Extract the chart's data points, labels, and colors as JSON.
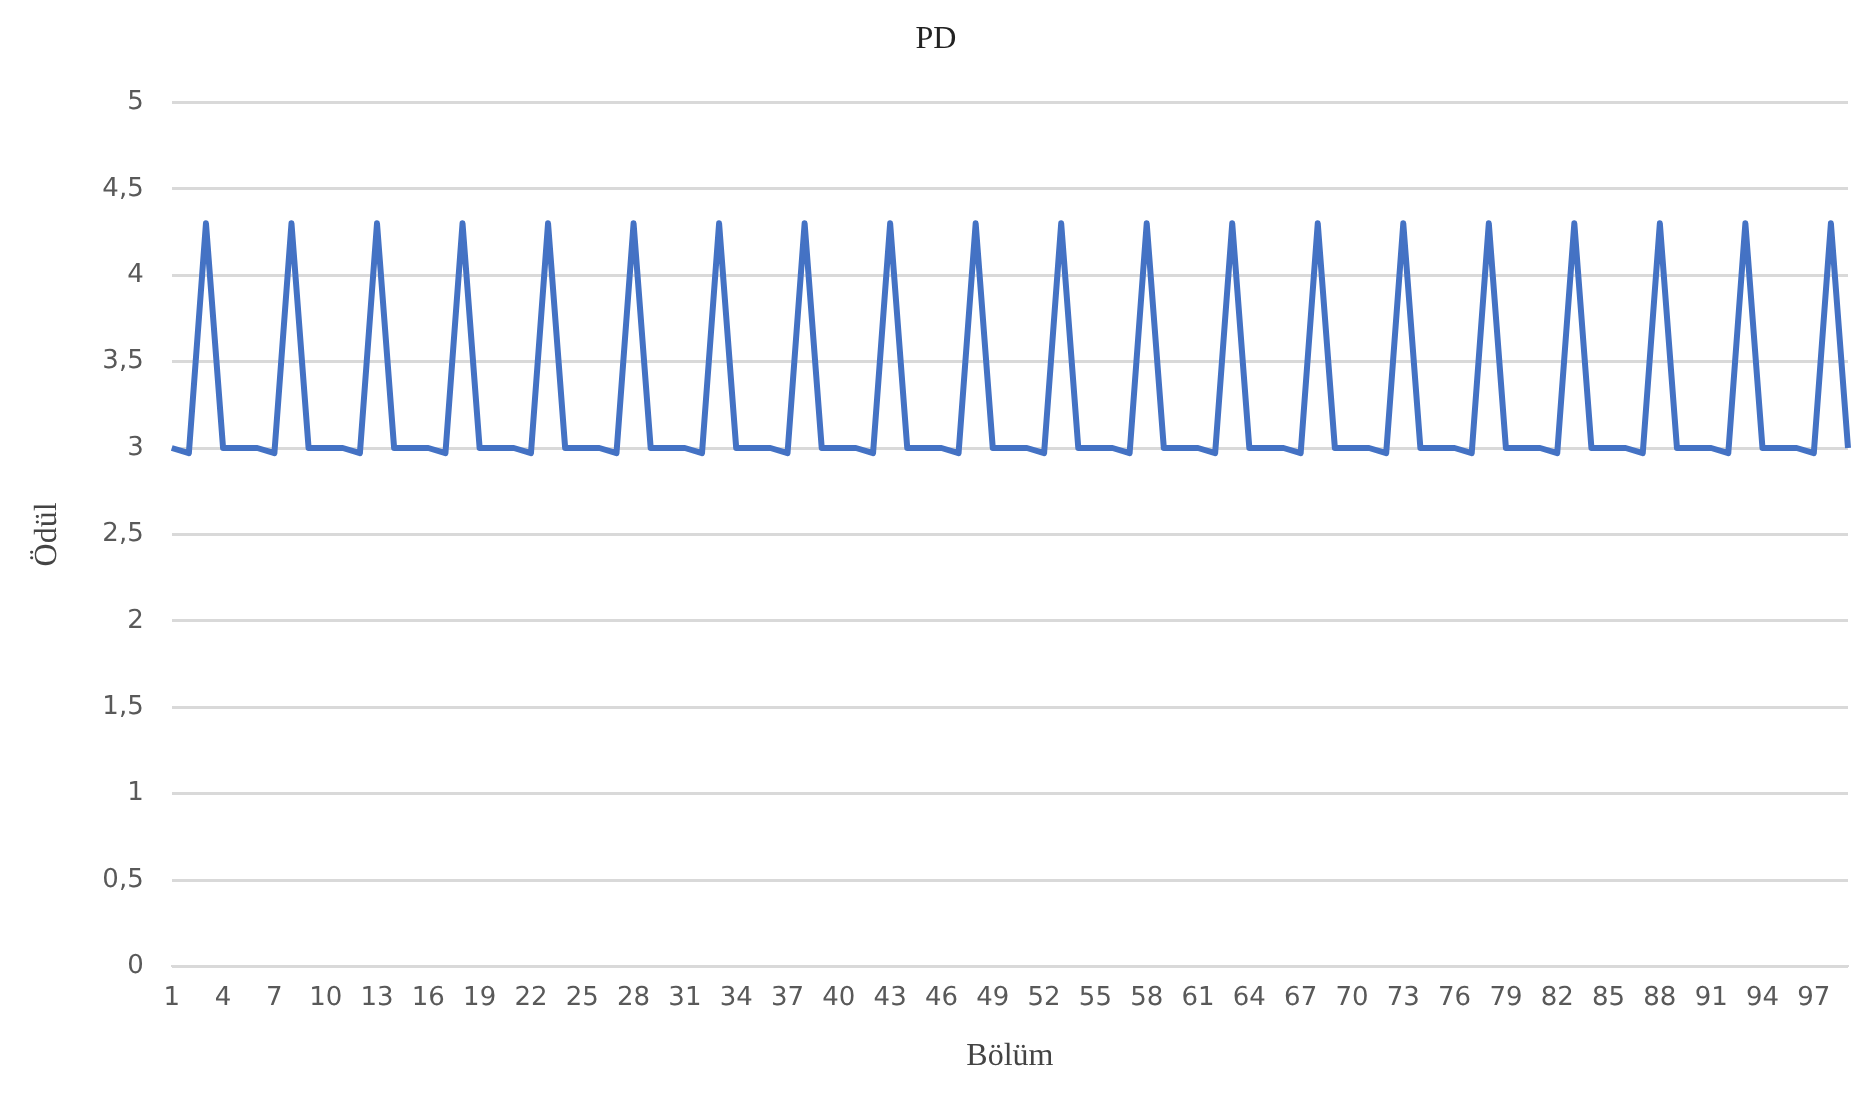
{
  "chart_data": {
    "type": "line",
    "title": "PD",
    "xlabel": "Bölüm",
    "ylabel": "Ödül",
    "categories": [
      "1",
      null,
      null,
      "4",
      null,
      null,
      "7",
      null,
      null,
      "10",
      null,
      null,
      "13",
      null,
      null,
      "16",
      null,
      null,
      "19",
      null,
      null,
      "22",
      null,
      null,
      "25",
      null,
      null,
      "28",
      null,
      null,
      "31",
      null,
      null,
      "34",
      null,
      null,
      "37",
      null,
      null,
      "40",
      null,
      null,
      "43",
      null,
      null,
      "46",
      null,
      null,
      "49",
      null,
      null,
      "52",
      null,
      null,
      "55",
      null,
      null,
      "58",
      null,
      null,
      "61",
      null,
      null,
      "64",
      null,
      null,
      "67",
      null,
      null,
      "70",
      null,
      null,
      "73",
      null,
      null,
      "76",
      null,
      null,
      "79",
      null,
      null,
      "82",
      null,
      null,
      "85",
      null,
      null,
      "88",
      null,
      null,
      "91",
      null,
      null,
      "94",
      null,
      null,
      "97",
      null,
      null
    ],
    "series": [
      {
        "color": "#4472c4",
        "values": [
          3,
          2.97,
          4.3,
          3,
          3,
          3,
          2.97,
          4.3,
          3,
          3,
          3,
          2.97,
          4.3,
          3,
          3,
          3,
          2.97,
          4.3,
          3,
          3,
          3,
          2.97,
          4.3,
          3,
          3,
          3,
          2.97,
          4.3,
          3,
          3,
          3,
          2.97,
          4.3,
          3,
          3,
          3,
          2.97,
          4.3,
          3,
          3,
          3,
          2.97,
          4.3,
          3,
          3,
          3,
          2.97,
          4.3,
          3,
          3,
          3,
          2.97,
          4.3,
          3,
          3,
          3,
          2.97,
          4.3,
          3,
          3,
          3,
          2.97,
          4.3,
          3,
          3,
          3,
          2.97,
          4.3,
          3,
          3,
          3,
          2.97,
          4.3,
          3,
          3,
          3,
          2.97,
          4.3,
          3,
          3,
          3,
          2.97,
          4.3,
          3,
          3,
          3,
          2.97,
          4.3,
          3,
          3,
          3,
          2.97,
          4.3,
          3,
          3,
          3,
          2.97,
          4.3,
          3
        ]
      }
    ],
    "ylim": [
      0,
      5
    ],
    "yticks": [
      0,
      {
        "value": 0.5,
        "label": "0,5"
      },
      1,
      {
        "value": 1.5,
        "label": "1,5"
      },
      2,
      {
        "value": 2.5,
        "label": "2,5"
      },
      3,
      {
        "value": 3.5,
        "label": "3,5"
      },
      4,
      {
        "value": 4.5,
        "label": "4,5"
      },
      5
    ],
    "grid": "y",
    "legend": false,
    "marker": "none",
    "line_style": "solid"
  }
}
